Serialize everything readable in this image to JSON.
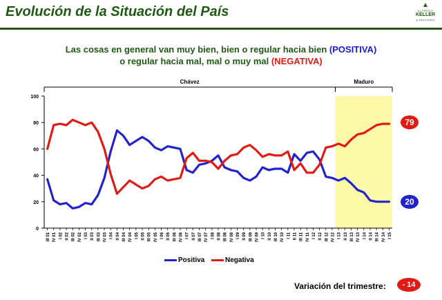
{
  "header": {
    "title": "Evolución de la Situación del País",
    "logo": {
      "line1": "ALFREDO",
      "line2": "KELLER",
      "line3": "y asociados"
    }
  },
  "subtitle": {
    "line1_text": "Las cosas en general van muy bien, bien o regular hacia bien ",
    "line1_highlight": "(POSITIVA)",
    "line2_text": "o regular hacia mal, mal o muy mal ",
    "line2_highlight": "(NEGATIVA)"
  },
  "periods": [
    {
      "label": "Chávez"
    },
    {
      "label": "Maduro"
    }
  ],
  "badges": {
    "negativa_last": "79",
    "positiva_last": "20"
  },
  "legend": {
    "positiva": "Positiva",
    "negativa": "Negativa"
  },
  "variacion": {
    "label": "Variación del trimestre:",
    "value": "- 14"
  },
  "colors": {
    "positiva": "#2222cc",
    "negativa": "#e11a14",
    "maduro_band": "#fbf8a8",
    "accent": "#1e5a14"
  },
  "chart_data": {
    "type": "line",
    "ylim": [
      0,
      100
    ],
    "yticks": [
      0,
      20,
      40,
      60,
      80,
      100
    ],
    "categories": [
      "III 01",
      "IV 01",
      "I 02",
      "II 02",
      "III 02",
      "IV 02",
      "I 03",
      "II 03",
      "III 03",
      "IV 03",
      "I 04",
      "II 04",
      "III 04",
      "IV 04",
      "I 05",
      "II 05",
      "III 05",
      "IV 05",
      "I 06",
      "II 06",
      "III 06",
      "IV 06",
      "I 07",
      "II 07",
      "III 07",
      "IV 07",
      "I 08",
      "II 08",
      "III 08",
      "IV 08",
      "I 09",
      "II 09",
      "III 09",
      "IV 09",
      "I 10",
      "II 10",
      "III 10",
      "IV 10",
      "I 11",
      "II 11",
      "III 11",
      "IV 11",
      "I 12",
      "II 12",
      "III 12",
      "IV 12",
      "I 13",
      "II 13",
      "III 13",
      "IV 13",
      "I 14",
      "II 14",
      "III 14",
      "IV 14",
      "I 15"
    ],
    "series": [
      {
        "name": "Positiva",
        "values": [
          37,
          21,
          18,
          19,
          15,
          16,
          19,
          18,
          25,
          38,
          58,
          74,
          70,
          63,
          66,
          69,
          66,
          61,
          59,
          62,
          61,
          60,
          44,
          42,
          48,
          49,
          51,
          55,
          46,
          44,
          43,
          38,
          36,
          39,
          46,
          44,
          45,
          45,
          42,
          56,
          51,
          57,
          58,
          52,
          39,
          38,
          36,
          38,
          34,
          29,
          27,
          21,
          20,
          20,
          20
        ]
      },
      {
        "name": "Negativa",
        "values": [
          60,
          78,
          79,
          78,
          82,
          80,
          78,
          80,
          73,
          60,
          41,
          26,
          31,
          36,
          33,
          30,
          32,
          37,
          39,
          36,
          37,
          38,
          53,
          57,
          51,
          51,
          50,
          45,
          51,
          55,
          56,
          61,
          63,
          59,
          54,
          56,
          55,
          55,
          58,
          44,
          49,
          42,
          42,
          48,
          61,
          62,
          64,
          62,
          67,
          71,
          72,
          75,
          78,
          79,
          79
        ]
      }
    ]
  }
}
